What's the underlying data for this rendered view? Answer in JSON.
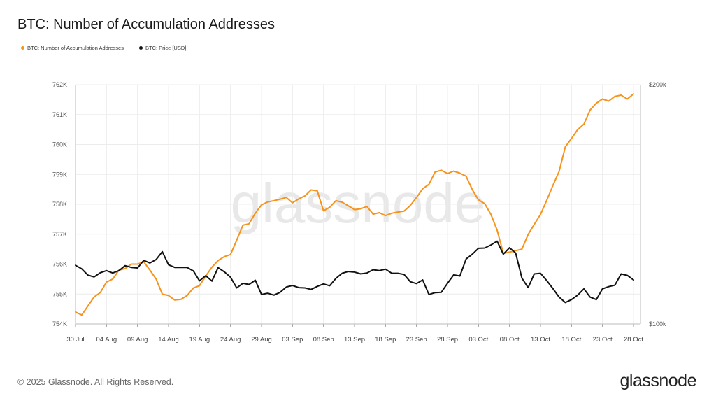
{
  "title": "BTC: Number of Accumulation Addresses",
  "legend": {
    "series1": "BTC: Number of Accumulation Addresses",
    "series2": "BTC: Price [USD]"
  },
  "watermark": "glassnode",
  "footer": "© 2025 Glassnode. All Rights Reserved.",
  "logo": "glassnode",
  "colors": {
    "series1": "#f7931a",
    "series2": "#111111",
    "grid": "#ececec",
    "watermark": "#e8e8e8"
  },
  "chart_data": {
    "type": "line",
    "title": "BTC: Number of Accumulation Addresses",
    "x_ticks": [
      "30 Jul",
      "04 Aug",
      "09 Aug",
      "14 Aug",
      "19 Aug",
      "24 Aug",
      "29 Aug",
      "03 Sep",
      "08 Sep",
      "13 Sep",
      "18 Sep",
      "23 Sep",
      "28 Sep",
      "03 Oct",
      "08 Oct",
      "13 Oct",
      "18 Oct",
      "23 Oct",
      "28 Oct"
    ],
    "y_left_ticks": [
      "754K",
      "755K",
      "756K",
      "757K",
      "758K",
      "759K",
      "760K",
      "761K",
      "762K"
    ],
    "y_left_range": [
      754000,
      762000
    ],
    "y_right_ticks": [
      "$100k",
      "$200k"
    ],
    "y_right_range": [
      100000,
      200000
    ],
    "y_right_scale": "log",
    "grid": true,
    "legend_position": "top-left",
    "series": [
      {
        "name": "BTC: Number of Accumulation Addresses",
        "axis": "left",
        "values": [
          754400,
          754300,
          754600,
          754900,
          755050,
          755400,
          755500,
          755800,
          755850,
          756000,
          756000,
          756080,
          755800,
          755500,
          755000,
          754950,
          754800,
          754820,
          754950,
          755200,
          755280,
          755600,
          755900,
          756120,
          756250,
          756320,
          756800,
          757300,
          757350,
          757700,
          757980,
          758080,
          758120,
          758170,
          758230,
          758050,
          758180,
          758280,
          758480,
          758450,
          757780,
          757900,
          758120,
          758070,
          757950,
          757820,
          757850,
          757930,
          757670,
          757720,
          757620,
          757700,
          757740,
          757770,
          757960,
          758230,
          758520,
          758670,
          759080,
          759140,
          759030,
          759110,
          759040,
          758940,
          758490,
          758150,
          758020,
          757660,
          757140,
          756360,
          756400,
          756450,
          756500,
          756990,
          757330,
          757660,
          758130,
          758630,
          759100,
          759920,
          760200,
          760500,
          760680,
          761150,
          761380,
          761520,
          761450,
          761610,
          761650,
          761520,
          761690
        ]
      },
      {
        "name": "BTC: Price [USD]",
        "axis": "right",
        "values": [
          118500,
          117300,
          115200,
          114600,
          116000,
          116700,
          115900,
          116700,
          118400,
          117800,
          117600,
          120200,
          119300,
          120500,
          123300,
          118700,
          117800,
          117800,
          117800,
          116600,
          113300,
          115000,
          113200,
          117700,
          116300,
          114500,
          111000,
          112500,
          112100,
          113500,
          108900,
          109300,
          108700,
          109600,
          111300,
          111800,
          111100,
          111000,
          110500,
          111500,
          112300,
          111700,
          114100,
          115800,
          116400,
          116200,
          115600,
          115900,
          117000,
          116700,
          117200,
          115800,
          115800,
          115400,
          113000,
          112400,
          113600,
          108900,
          109500,
          109600,
          112500,
          115300,
          114900,
          120700,
          122400,
          124500,
          124600,
          125700,
          127100,
          122400,
          124700,
          122800,
          114200,
          111100,
          115600,
          115800,
          113400,
          110800,
          108100,
          106400,
          107300,
          108700,
          110700,
          108100,
          107300,
          110700,
          111400,
          111900,
          115600,
          115100,
          113600
        ]
      }
    ]
  }
}
